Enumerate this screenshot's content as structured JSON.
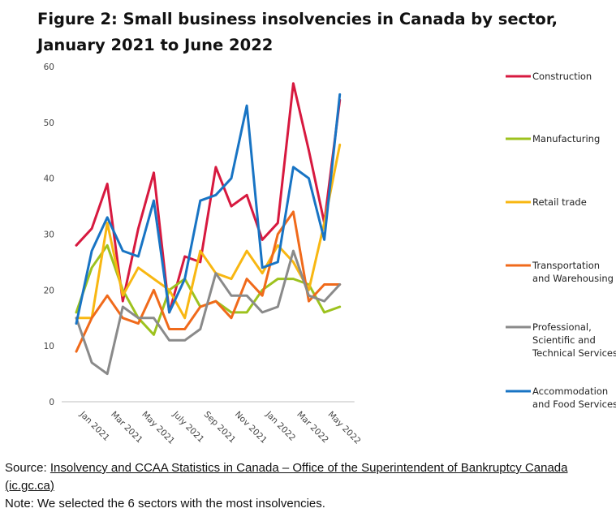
{
  "chart_data": {
    "type": "line",
    "title": "Figure 2: Small business insolvencies in Canada by sector, January 2021 to June 2022",
    "x": [
      "Jan 2021",
      "Feb 2021",
      "Mar 2021",
      "Apr 2021",
      "May 2021",
      "Jun 2021",
      "July 2021",
      "Aug 2021",
      "Sep 2021",
      "Oct 2021",
      "Nov 2021",
      "Dec 2021",
      "Jan 2022",
      "Feb 2022",
      "Mar 2022",
      "Apr 2022",
      "May 2022",
      "Jun 2022"
    ],
    "x_tick_labels": [
      "Jan 2021",
      "Mar 2021",
      "May 2021",
      "July 2021",
      "Sep 2021",
      "Nov 2021",
      "Jan 2022",
      "Mar 2022",
      "May 2022"
    ],
    "y_ticks": [
      "0",
      "10",
      "20",
      "30",
      "40",
      "50",
      "60"
    ],
    "ylim": [
      0,
      60
    ],
    "grid": false,
    "legend_position": "right",
    "series": [
      {
        "name": "Construction",
        "color": "#d7193f",
        "values": [
          28,
          31,
          39,
          18,
          31,
          41,
          16,
          26,
          25,
          42,
          35,
          37,
          29,
          32,
          57,
          45,
          32,
          54
        ]
      },
      {
        "name": "Manufacturing",
        "color": "#9dc21e",
        "values": [
          16,
          24,
          28,
          20,
          15,
          12,
          20,
          22,
          17,
          18,
          16,
          16,
          20,
          22,
          22,
          21,
          16,
          17
        ]
      },
      {
        "name": "Retail trade",
        "color": "#f8b712",
        "values": [
          15,
          15,
          32,
          19,
          24,
          22,
          20,
          15,
          27,
          23,
          22,
          27,
          23,
          28,
          25,
          20,
          32,
          46
        ]
      },
      {
        "name": "Transportation and Warehousing",
        "color": "#f06a1b",
        "values": [
          9,
          15,
          19,
          15,
          14,
          20,
          13,
          13,
          17,
          18,
          15,
          22,
          19,
          30,
          34,
          18,
          21,
          21
        ]
      },
      {
        "name": "Professional, Scientific and Technical Services",
        "color": "#8a8a8a",
        "values": [
          15,
          7,
          5,
          17,
          15,
          15,
          11,
          11,
          13,
          23,
          19,
          19,
          16,
          17,
          27,
          19,
          18,
          21
        ]
      },
      {
        "name": "Accommodation and Food Services",
        "color": "#1874c4",
        "values": [
          14,
          27,
          33,
          27,
          26,
          36,
          16,
          22,
          36,
          37,
          40,
          53,
          24,
          25,
          42,
          40,
          29,
          55
        ]
      }
    ]
  },
  "legend": [
    {
      "lines": [
        "Construction"
      ]
    },
    {
      "lines": [
        "Manufacturing"
      ]
    },
    {
      "lines": [
        "Retail trade"
      ]
    },
    {
      "lines": [
        "Transportation",
        "and Warehousing"
      ]
    },
    {
      "lines": [
        "Professional,",
        "Scientific and",
        "Technical Services"
      ]
    },
    {
      "lines": [
        "Accommodation",
        "and Food Services"
      ]
    }
  ],
  "footer": {
    "source_prefix": "Source: ",
    "source_link": "Insolvency and CCAA Statistics in Canada – Office of the Superintendent of Bankruptcy Canada (ic.gc.ca)",
    "note": "Note: We selected the 6 sectors with the most insolvencies."
  }
}
